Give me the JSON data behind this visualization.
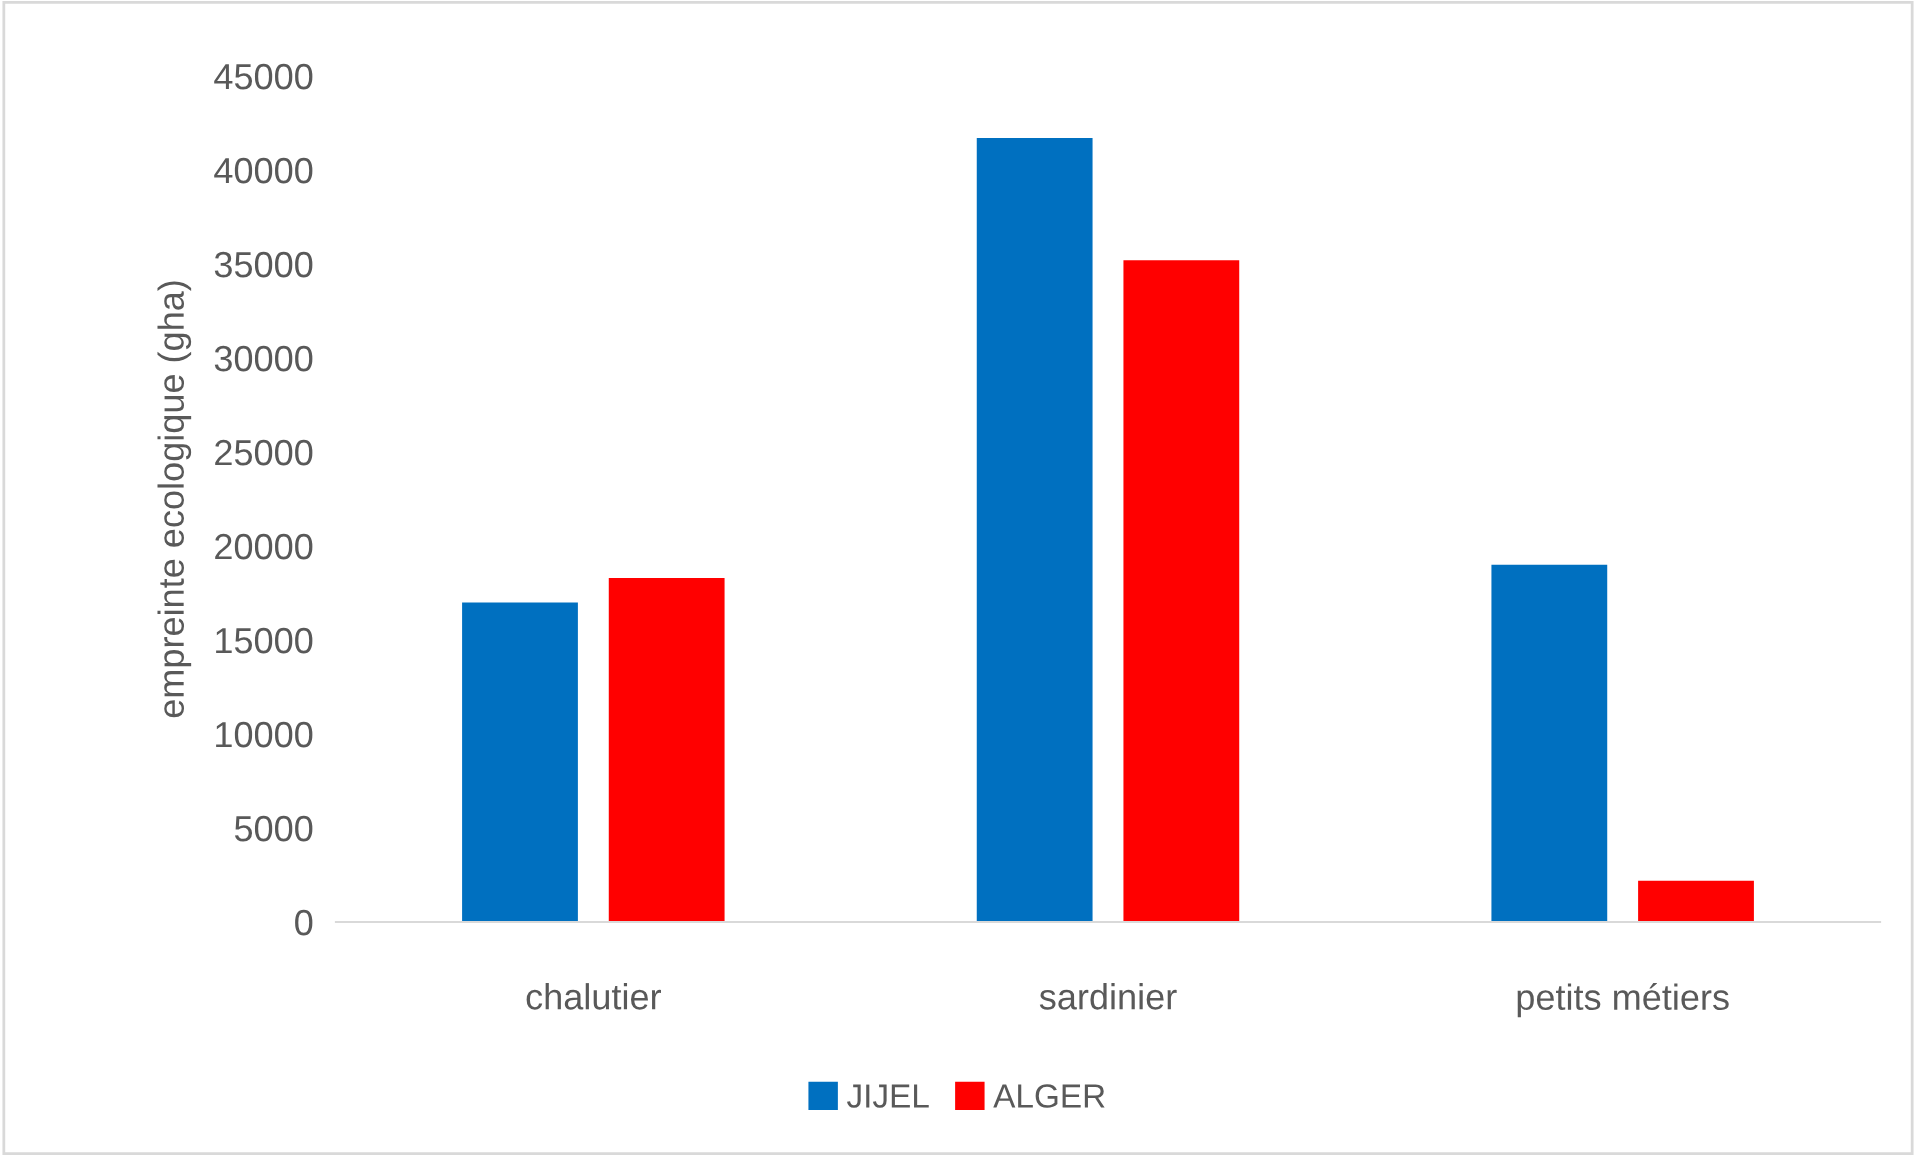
{
  "chart_data": {
    "type": "bar",
    "ylabel": "empreinte ecologique (gha)",
    "categories": [
      "chalutier",
      "sardinier",
      "petits métiers"
    ],
    "series": [
      {
        "name": "JIJEL",
        "color": "#0070c0",
        "values": [
          17000,
          41700,
          19000
        ]
      },
      {
        "name": "ALGER",
        "color": "#ff0000",
        "values": [
          18300,
          35200,
          2200
        ]
      }
    ],
    "ylim": [
      0,
      45000
    ],
    "yticks": [
      0,
      5000,
      10000,
      15000,
      20000,
      25000,
      30000,
      35000,
      40000,
      45000
    ],
    "grid": false,
    "legend": "bottom"
  }
}
